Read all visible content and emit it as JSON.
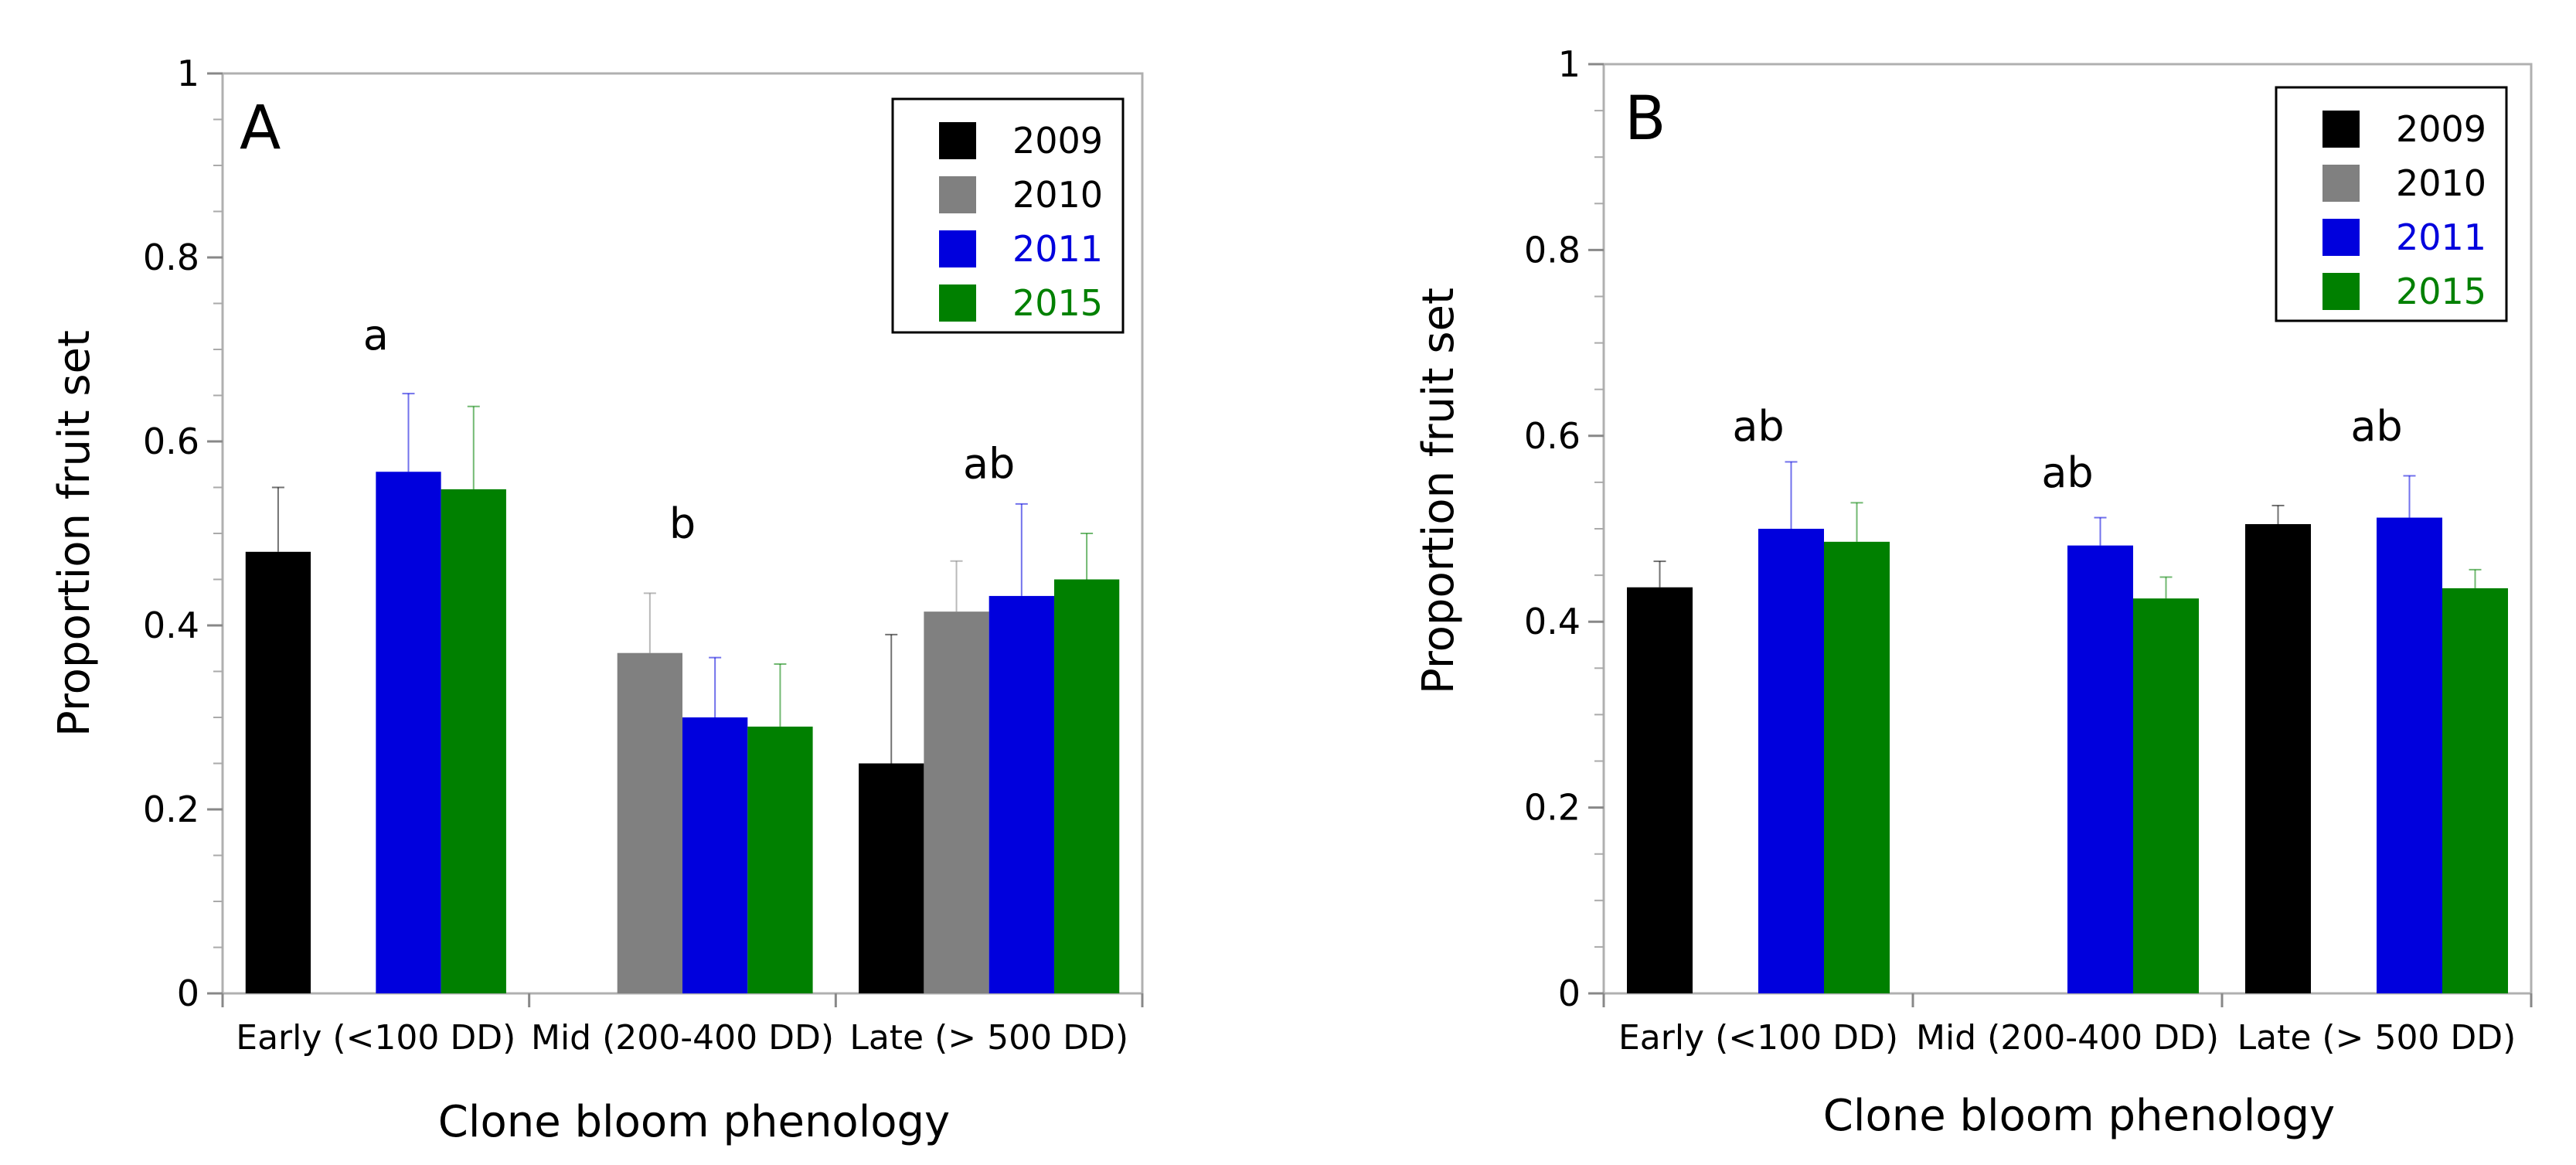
{
  "chart_data": [
    {
      "panel": "A",
      "type": "bar",
      "xlabel": "Clone bloom phenology",
      "ylabel": "Proportion fruit set",
      "ylim": [
        0,
        1
      ],
      "yticks": [
        "0",
        "0.2",
        "0.4",
        "0.6",
        "0.8",
        "1"
      ],
      "categories": [
        "Early (<100 DD)",
        "Mid (200-400 DD)",
        "Late (> 500 DD)"
      ],
      "series": [
        {
          "name": "2009",
          "color": "#000000",
          "values": [
            0.48,
            null,
            0.25
          ],
          "errors": [
            0.07,
            null,
            0.14
          ]
        },
        {
          "name": "2010",
          "color": "#808080",
          "values": [
            null,
            0.37,
            0.415
          ],
          "errors": [
            null,
            0.065,
            0.055
          ]
        },
        {
          "name": "2011",
          "color": "#0000dd",
          "values": [
            0.567,
            0.3,
            0.432
          ],
          "errors": [
            0.085,
            0.065,
            0.1
          ]
        },
        {
          "name": "2015",
          "color": "#008000",
          "values": [
            0.548,
            0.29,
            0.45
          ],
          "errors": [
            0.09,
            0.068,
            0.05
          ]
        }
      ],
      "annotations": [
        {
          "category": 0,
          "y": 0.7,
          "text": "a"
        },
        {
          "category": 1,
          "y": 0.495,
          "text": "b"
        },
        {
          "category": 2,
          "y": 0.56,
          "text": "ab"
        }
      ],
      "legend": {
        "position": "top-right",
        "labels": [
          "2009",
          "2010",
          "2011",
          "2015"
        ],
        "label_colors": [
          "#000000",
          "#000000",
          "#0000dd",
          "#008000"
        ]
      }
    },
    {
      "panel": "B",
      "type": "bar",
      "xlabel": "Clone bloom phenology",
      "ylabel": "Proportion fruit set",
      "ylim": [
        0,
        1
      ],
      "yticks": [
        "0",
        "0.2",
        "0.4",
        "0.6",
        "0.8",
        "1"
      ],
      "categories": [
        "Early (<100 DD)",
        "Mid (200-400 DD)",
        "Late (> 500 DD)"
      ],
      "series": [
        {
          "name": "2009",
          "color": "#000000",
          "values": [
            0.437,
            null,
            0.505
          ],
          "errors": [
            0.028,
            null,
            0.02
          ]
        },
        {
          "name": "2010",
          "color": "#808080",
          "values": [
            null,
            null,
            null
          ],
          "errors": [
            null,
            null,
            null
          ]
        },
        {
          "name": "2011",
          "color": "#0000dd",
          "values": [
            0.5,
            0.482,
            0.512
          ],
          "errors": [
            0.072,
            0.03,
            0.045
          ]
        },
        {
          "name": "2015",
          "color": "#008000",
          "values": [
            0.486,
            0.425,
            0.436
          ],
          "errors": [
            0.042,
            0.023,
            0.02
          ]
        }
      ],
      "annotations": [
        {
          "category": 0,
          "y": 0.595,
          "text": "ab"
        },
        {
          "category": 1,
          "y": 0.545,
          "text": "ab"
        },
        {
          "category": 2,
          "y": 0.595,
          "text": "ab"
        }
      ],
      "legend": {
        "position": "top-right",
        "labels": [
          "2009",
          "2010",
          "2011",
          "2015"
        ],
        "label_colors": [
          "#000000",
          "#000000",
          "#0000dd",
          "#008000"
        ]
      }
    }
  ]
}
